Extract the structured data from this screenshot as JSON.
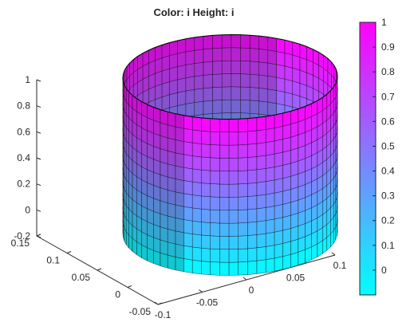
{
  "chart_data": {
    "type": "surface",
    "title": "Color: i  Height: i",
    "surface_shape": "cylinder",
    "colormap": "cool",
    "cylinder": {
      "center_x": 0.05,
      "center_y": 0.05,
      "radius": 0.1,
      "z_bottom": -0.2,
      "z_top": 1
    },
    "z_axis": {
      "ticks": [
        -0.2,
        0,
        0.2,
        0.4,
        0.6,
        0.8,
        1
      ],
      "tick_labels": [
        "-0.2",
        "0",
        "0.2",
        "0.4",
        "0.6",
        "0.8",
        "1"
      ],
      "lim": [
        -0.2,
        1
      ]
    },
    "y_axis": {
      "ticks": [
        -0.05,
        0,
        0.05,
        0.1,
        0.15
      ],
      "tick_labels": [
        "-0.05",
        "0",
        "0.05",
        "0.1",
        "0.15"
      ],
      "lim": [
        -0.05,
        0.15
      ]
    },
    "x_axis": {
      "ticks": [
        -0.1,
        -0.05,
        0,
        0.05,
        0.1
      ],
      "tick_labels": [
        "-0.1",
        "-0.05",
        "0",
        "0.05",
        "0.1"
      ],
      "lim": [
        -0.1,
        0.1
      ]
    },
    "colorbar": {
      "ticks": [
        0,
        0.1,
        0.2,
        0.3,
        0.4,
        0.5,
        0.6,
        0.7,
        0.8,
        0.9,
        1
      ],
      "tick_labels": [
        "0",
        "0.1",
        "0.2",
        "0.3",
        "0.4",
        "0.5",
        "0.6",
        "0.7",
        "0.8",
        "0.9",
        "1"
      ],
      "lim": [
        -0.1,
        1
      ]
    },
    "grid": false,
    "colors": {
      "low": "#00ffff",
      "high": "#ff00ff",
      "edge": "#000000",
      "axis": "#262626"
    }
  }
}
